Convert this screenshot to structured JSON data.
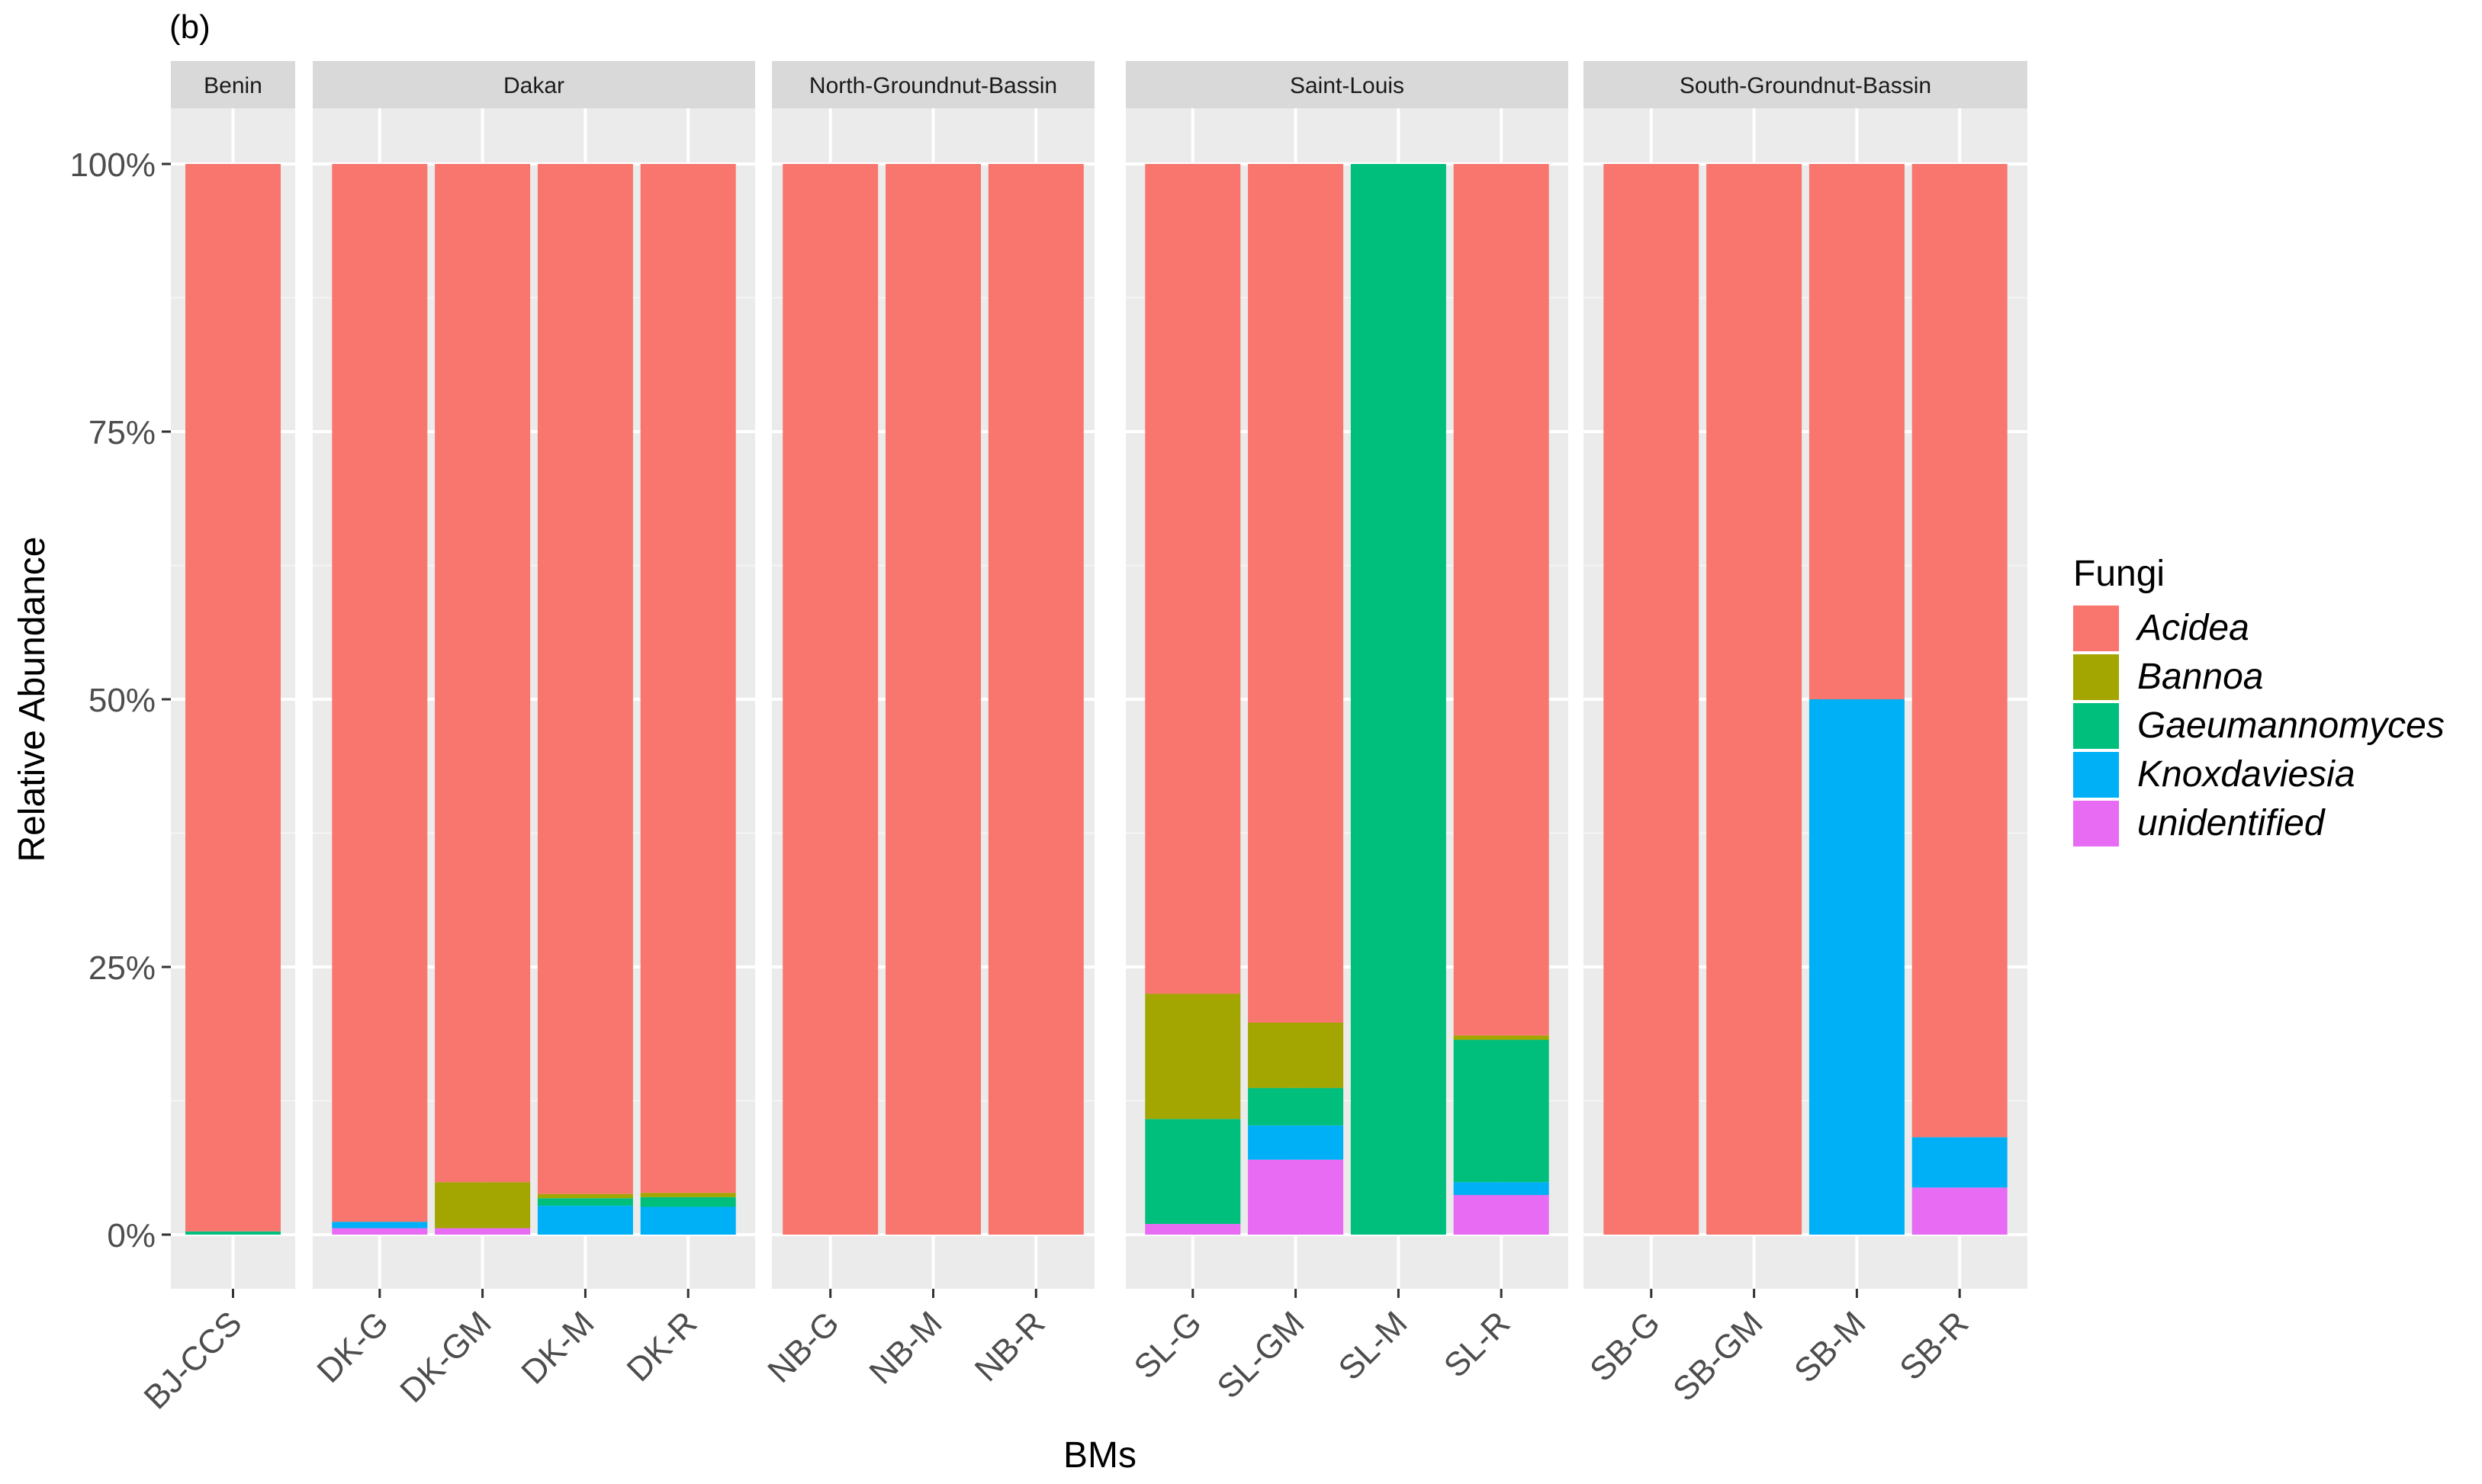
{
  "figure_label": "(b)",
  "chart_data": {
    "type": "bar",
    "stacked": true,
    "ylabel": "Relative Abundance",
    "xlabel": "BMs",
    "ylim": [
      0,
      1
    ],
    "yticks": [
      {
        "value": 0,
        "label": "0%"
      },
      {
        "value": 0.25,
        "label": "25%"
      },
      {
        "value": 0.5,
        "label": "50%"
      },
      {
        "value": 0.75,
        "label": "75%"
      },
      {
        "value": 1,
        "label": "100%"
      }
    ],
    "grid": true,
    "legend": {
      "title": "Fungi",
      "position": "right",
      "entries": [
        {
          "name": "Acidea",
          "color": "#F8766D"
        },
        {
          "name": "Bannoa",
          "color": "#A3A500"
        },
        {
          "name": "Gaeumannomyces",
          "color": "#00BF7D"
        },
        {
          "name": "Knoxdaviesia",
          "color": "#00B0F6"
        },
        {
          "name": "unidentified",
          "color": "#E76BF3"
        }
      ]
    },
    "panels": [
      {
        "label": "Benin",
        "bars": [
          {
            "category": "BJ-CCS",
            "values": {
              "unidentified": 0.0,
              "Knoxdaviesia": 0.0,
              "Gaeumannomyces": 0.003,
              "Bannoa": 0.0,
              "Acidea": 0.997
            }
          }
        ]
      },
      {
        "label": "Dakar",
        "bars": [
          {
            "category": "DK-G",
            "values": {
              "unidentified": 0.006,
              "Knoxdaviesia": 0.006,
              "Gaeumannomyces": 0.0,
              "Bannoa": 0.0,
              "Acidea": 0.988
            }
          },
          {
            "category": "DK-GM",
            "values": {
              "unidentified": 0.006,
              "Knoxdaviesia": 0.0,
              "Gaeumannomyces": 0.0,
              "Bannoa": 0.043,
              "Acidea": 0.951
            }
          },
          {
            "category": "DK-M",
            "values": {
              "unidentified": 0.0,
              "Knoxdaviesia": 0.027,
              "Gaeumannomyces": 0.007,
              "Bannoa": 0.004,
              "Acidea": 0.962
            }
          },
          {
            "category": "DK-R",
            "values": {
              "unidentified": 0.0,
              "Knoxdaviesia": 0.026,
              "Gaeumannomyces": 0.009,
              "Bannoa": 0.004,
              "Acidea": 0.961
            }
          }
        ]
      },
      {
        "label": "North-Groundnut-Bassin",
        "bars": [
          {
            "category": "NB-G",
            "values": {
              "unidentified": 0.0,
              "Knoxdaviesia": 0.0,
              "Gaeumannomyces": 0.0,
              "Bannoa": 0.0,
              "Acidea": 1.0
            }
          },
          {
            "category": "NB-M",
            "values": {
              "unidentified": 0.0,
              "Knoxdaviesia": 0.0,
              "Gaeumannomyces": 0.0,
              "Bannoa": 0.0,
              "Acidea": 1.0
            }
          },
          {
            "category": "NB-R",
            "values": {
              "unidentified": 0.0,
              "Knoxdaviesia": 0.0,
              "Gaeumannomyces": 0.0,
              "Bannoa": 0.0,
              "Acidea": 1.0
            }
          }
        ]
      },
      {
        "label": "Saint-Louis",
        "bars": [
          {
            "category": "SL-G",
            "values": {
              "unidentified": 0.01,
              "Knoxdaviesia": 0.0,
              "Gaeumannomyces": 0.098,
              "Bannoa": 0.117,
              "Acidea": 0.775
            }
          },
          {
            "category": "SL-GM",
            "values": {
              "unidentified": 0.07,
              "Knoxdaviesia": 0.032,
              "Gaeumannomyces": 0.035,
              "Bannoa": 0.061,
              "Acidea": 0.802
            }
          },
          {
            "category": "SL-M",
            "values": {
              "unidentified": 0.0,
              "Knoxdaviesia": 0.0,
              "Gaeumannomyces": 1.0,
              "Bannoa": 0.0,
              "Acidea": 0.0
            }
          },
          {
            "category": "SL-R",
            "values": {
              "unidentified": 0.037,
              "Knoxdaviesia": 0.012,
              "Gaeumannomyces": 0.133,
              "Bannoa": 0.004,
              "Acidea": 0.814
            }
          }
        ]
      },
      {
        "label": "South-Groundnut-Bassin",
        "bars": [
          {
            "category": "SB-G",
            "values": {
              "unidentified": 0.0,
              "Knoxdaviesia": 0.0,
              "Gaeumannomyces": 0.0,
              "Bannoa": 0.0,
              "Acidea": 1.0
            }
          },
          {
            "category": "SB-GM",
            "values": {
              "unidentified": 0.0,
              "Knoxdaviesia": 0.0,
              "Gaeumannomyces": 0.0,
              "Bannoa": 0.0,
              "Acidea": 1.0
            }
          },
          {
            "category": "SB-M",
            "values": {
              "unidentified": 0.0,
              "Knoxdaviesia": 0.5,
              "Gaeumannomyces": 0.0,
              "Bannoa": 0.0,
              "Acidea": 0.5
            }
          },
          {
            "category": "SB-R",
            "values": {
              "unidentified": 0.044,
              "Knoxdaviesia": 0.047,
              "Gaeumannomyces": 0.0,
              "Bannoa": 0.0,
              "Acidea": 0.909
            }
          }
        ]
      }
    ]
  }
}
